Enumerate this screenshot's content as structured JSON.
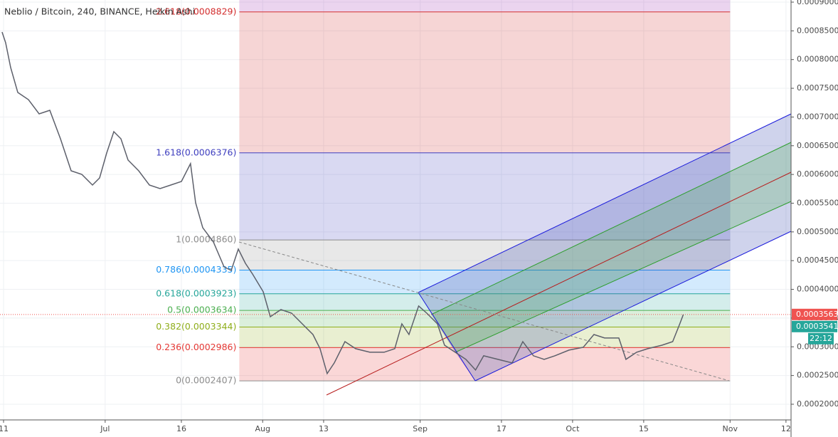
{
  "chart_data": {
    "type": "line",
    "title": "Neblio / Bitcoin, 240, BINANCE, Heikin Ashi",
    "xlim": [
      -0.7,
      155
    ],
    "xticks": [
      {
        "value": 0,
        "label": "11"
      },
      {
        "value": 20,
        "label": "Jul"
      },
      {
        "value": 35,
        "label": "16"
      },
      {
        "value": 51,
        "label": "Aug"
      },
      {
        "value": 63,
        "label": "13"
      },
      {
        "value": 82,
        "label": "Sep"
      },
      {
        "value": 98,
        "label": "17"
      },
      {
        "value": 112,
        "label": "Oct"
      },
      {
        "value": 126,
        "label": "15"
      },
      {
        "value": 143,
        "label": "Nov"
      },
      {
        "value": 154,
        "label": "12"
      }
    ],
    "ylim": [
      0.0001727,
      0.0009037
    ],
    "yticks": [
      {
        "value": 0.0002,
        "label": "0.0002000"
      },
      {
        "value": 0.00025,
        "label": "0.0002500"
      },
      {
        "value": 0.0003,
        "label": "0.0003000"
      },
      {
        "value": 0.00035,
        "label": "0.0003500"
      },
      {
        "value": 0.0004,
        "label": "0.0004000"
      },
      {
        "value": 0.00045,
        "label": "0.0004500"
      },
      {
        "value": 0.0005,
        "label": "0.0005000"
      },
      {
        "value": 0.00055,
        "label": "0.0005500"
      },
      {
        "value": 0.0006,
        "label": "0.0006000"
      },
      {
        "value": 0.00065,
        "label": "0.0006500"
      },
      {
        "value": 0.0007,
        "label": "0.0007000"
      },
      {
        "value": 0.00075,
        "label": "0.0007500"
      },
      {
        "value": 0.0008,
        "label": "0.0008000"
      },
      {
        "value": 0.00085,
        "label": "0.0008500"
      },
      {
        "value": 0.0009,
        "label": "0.0009000"
      }
    ],
    "grid": true,
    "series": [
      {
        "name": "NEBL/BTC",
        "color": "#5d606b",
        "x": [
          -0.3,
          0.4,
          1.4,
          2.8,
          4.9,
          7.0,
          9.1,
          11.2,
          13.3,
          15.4,
          17.5,
          18.9,
          20.3,
          21.7,
          23.1,
          24.5,
          26.6,
          28.7,
          30.8,
          32.9,
          35.0,
          36.8,
          37.8,
          39.2,
          41.3,
          43.4,
          44.8,
          46.2,
          47.6,
          49.0,
          51.1,
          52.5,
          54.6,
          56.7,
          58.8,
          60.9,
          62.3,
          63.7,
          65.1,
          67.2,
          69.3,
          72.1,
          74.9,
          77.0,
          78.4,
          79.8,
          81.7,
          83.3,
          85.4,
          86.8,
          88.9,
          91.0,
          92.9,
          94.5,
          97.3,
          100.1,
          102.2,
          104.3,
          106.4,
          108.5,
          111.3,
          114.1,
          116.2,
          118.3,
          121.1,
          122.5,
          124.6,
          126.8,
          129.6,
          131.7,
          133.1,
          133.8
        ],
        "values": [
          0.000848,
          0.0008294,
          0.000786,
          0.0007427,
          0.0007303,
          0.0007055,
          0.0007117,
          0.0006621,
          0.0006064,
          0.0006002,
          0.0005816,
          0.000594,
          0.0006374,
          0.0006745,
          0.0006621,
          0.000625,
          0.0006064,
          0.0005816,
          0.0005754,
          0.0005816,
          0.0005878,
          0.0006188,
          0.0005506,
          0.0005073,
          0.0004825,
          0.0004391,
          0.0004329,
          0.0004701,
          0.0004453,
          0.0004267,
          0.0003958,
          0.0003524,
          0.0003648,
          0.0003586,
          0.00034,
          0.0003214,
          0.0002967,
          0.0002533,
          0.0002719,
          0.000309,
          0.0002967,
          0.0002905,
          0.0002905,
          0.0002967,
          0.00034,
          0.0003214,
          0.000371,
          0.0003586,
          0.00034,
          0.0003028,
          0.0002905,
          0.0002781,
          0.0002595,
          0.0002843,
          0.0002781,
          0.0002719,
          0.000309,
          0.0002843,
          0.0002781,
          0.0002843,
          0.0002942,
          0.0002991,
          0.0003214,
          0.0003153,
          0.0003153,
          0.0002781,
          0.0002905,
          0.0002967,
          0.0003028,
          0.000309,
          0.00034,
          0.0003563
        ]
      }
    ],
    "fib": {
      "x_start": 46.4,
      "x_end": 143,
      "fill_above": "#9c27b0",
      "levels": [
        {
          "label": "2.618(0.0008829)",
          "value": 0.0008829,
          "color": "#d32f2f"
        },
        {
          "label": "1.618(0.0006376)",
          "value": 0.0006376,
          "color": "#3f3fbf"
        },
        {
          "label": "1(0.0004860)",
          "value": 0.000486,
          "color": "#8c8c8c"
        },
        {
          "label": "0.786(0.0004335)",
          "value": 0.0004335,
          "color": "#2196f3"
        },
        {
          "label": "0.618(0.0003923)",
          "value": 0.0003923,
          "color": "#26a69a"
        },
        {
          "label": "0.5(0.0003634)",
          "value": 0.0003634,
          "color": "#4caf50"
        },
        {
          "label": "0.382(0.0003344)",
          "value": 0.0003344,
          "color": "#8fae1b"
        },
        {
          "label": "0.236(0.0002986)",
          "value": 0.0002986,
          "color": "#e53935"
        },
        {
          "label": "0(0.0002407)",
          "value": 0.0002407,
          "color": "#8c8c8c"
        }
      ]
    },
    "price_labels": [
      {
        "label": "0.0003563",
        "value": 0.0003563,
        "color": "#ef5350"
      },
      {
        "label": "0.0003541",
        "value": 0.0003541,
        "color": "#26a69a"
      }
    ],
    "countdown": "22:12"
  }
}
